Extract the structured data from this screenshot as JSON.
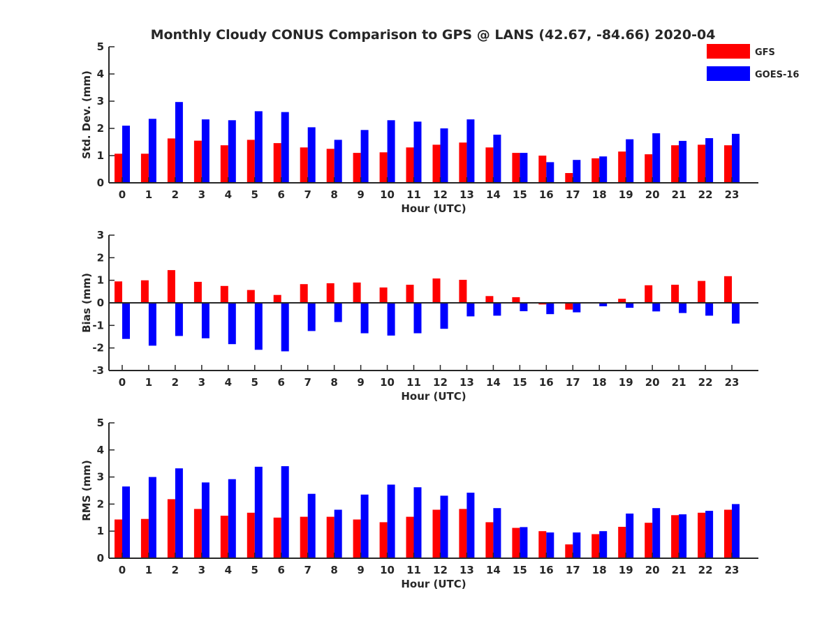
{
  "title": "Monthly Cloudy CONUS Comparison to GPS @ LANS (42.67, -84.66) 2020-04",
  "legend": [
    {
      "name": "GFS",
      "color": "#ff0000"
    },
    {
      "name": "GOES-16",
      "color": "#0000ff"
    }
  ],
  "chart_data": [
    {
      "type": "bar",
      "xlabel": "Hour (UTC)",
      "ylabel": "Std. Dev. (mm)",
      "ylim": [
        0,
        5
      ],
      "yticks": [
        0,
        1,
        2,
        3,
        4,
        5
      ],
      "categories": [
        "0",
        "1",
        "2",
        "3",
        "4",
        "5",
        "6",
        "7",
        "8",
        "9",
        "10",
        "11",
        "12",
        "13",
        "14",
        "15",
        "16",
        "17",
        "18",
        "19",
        "20",
        "21",
        "22",
        "23"
      ],
      "series": [
        {
          "name": "GFS",
          "values": [
            1.07,
            1.07,
            1.63,
            1.55,
            1.38,
            1.58,
            1.46,
            1.3,
            1.25,
            1.1,
            1.12,
            1.3,
            1.4,
            1.48,
            1.3,
            1.1,
            1.0,
            0.36,
            0.9,
            1.15,
            1.05,
            1.38,
            1.4,
            1.38
          ]
        },
        {
          "name": "GOES-16",
          "values": [
            2.1,
            2.35,
            2.97,
            2.33,
            2.3,
            2.63,
            2.6,
            2.04,
            1.58,
            1.94,
            2.3,
            2.25,
            2.0,
            2.33,
            1.77,
            1.1,
            0.76,
            0.84,
            0.97,
            1.6,
            1.82,
            1.54,
            1.64,
            1.8
          ]
        }
      ]
    },
    {
      "type": "bar",
      "xlabel": "Hour (UTC)",
      "ylabel": "Bias (mm)",
      "ylim": [
        -3,
        3
      ],
      "yticks": [
        -3,
        -2,
        -1,
        0,
        1,
        2,
        3
      ],
      "categories": [
        "0",
        "1",
        "2",
        "3",
        "4",
        "5",
        "6",
        "7",
        "8",
        "9",
        "10",
        "11",
        "12",
        "13",
        "14",
        "15",
        "16",
        "17",
        "18",
        "19",
        "20",
        "21",
        "22",
        "23"
      ],
      "series": [
        {
          "name": "GFS",
          "values": [
            0.95,
            1.0,
            1.45,
            0.93,
            0.75,
            0.57,
            0.35,
            0.83,
            0.87,
            0.9,
            0.68,
            0.8,
            1.08,
            1.02,
            0.3,
            0.25,
            -0.07,
            -0.3,
            0.0,
            0.18,
            0.78,
            0.8,
            0.97,
            1.18
          ]
        },
        {
          "name": "GOES-16",
          "values": [
            -1.6,
            -1.9,
            -1.47,
            -1.57,
            -1.83,
            -2.08,
            -2.15,
            -1.25,
            -0.85,
            -1.35,
            -1.45,
            -1.35,
            -1.15,
            -0.6,
            -0.57,
            -0.37,
            -0.5,
            -0.42,
            -0.15,
            -0.22,
            -0.38,
            -0.45,
            -0.57,
            -0.92
          ]
        }
      ]
    },
    {
      "type": "bar",
      "xlabel": "Hour (UTC)",
      "ylabel": "RMS (mm)",
      "ylim": [
        0,
        5
      ],
      "yticks": [
        0,
        1,
        2,
        3,
        4,
        5
      ],
      "categories": [
        "0",
        "1",
        "2",
        "3",
        "4",
        "5",
        "6",
        "7",
        "8",
        "9",
        "10",
        "11",
        "12",
        "13",
        "14",
        "15",
        "16",
        "17",
        "18",
        "19",
        "20",
        "21",
        "22",
        "23"
      ],
      "series": [
        {
          "name": "GFS",
          "values": [
            1.43,
            1.45,
            2.18,
            1.82,
            1.57,
            1.68,
            1.5,
            1.53,
            1.53,
            1.43,
            1.33,
            1.53,
            1.79,
            1.82,
            1.33,
            1.12,
            1.0,
            0.51,
            0.89,
            1.16,
            1.31,
            1.59,
            1.68,
            1.79
          ]
        },
        {
          "name": "GOES-16",
          "values": [
            2.65,
            3.0,
            3.32,
            2.8,
            2.92,
            3.38,
            3.4,
            2.38,
            1.79,
            2.35,
            2.72,
            2.62,
            2.31,
            2.42,
            1.85,
            1.15,
            0.95,
            0.95,
            1.0,
            1.65,
            1.85,
            1.62,
            1.75,
            2.0
          ]
        }
      ]
    }
  ]
}
